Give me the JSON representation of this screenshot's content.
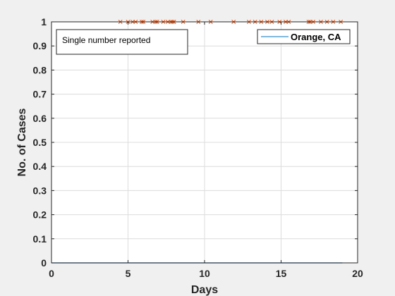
{
  "chart_data": {
    "type": "line",
    "title": "",
    "xlabel": "Days",
    "ylabel": "No. of Cases",
    "xlim": [
      0,
      20
    ],
    "ylim": [
      0,
      1
    ],
    "xticks": [
      "0",
      "5",
      "10",
      "15",
      "20"
    ],
    "yticks": [
      "0",
      "0.1",
      "0.2",
      "0.3",
      "0.4",
      "0.5",
      "0.6",
      "0.7",
      "0.8",
      "0.9",
      "1"
    ],
    "grid": true,
    "legend_position": "top-right",
    "annotation": "Single number reported",
    "series": [
      {
        "name": "Orange, CA",
        "style": "line",
        "color": "#0072bd",
        "x": [
          0,
          19
        ],
        "y": [
          0,
          0
        ]
      },
      {
        "name": "",
        "style": "x-markers",
        "color": "#d95319",
        "x": [
          4.5,
          5.0,
          5.3,
          5.5,
          5.9,
          6.0,
          6.6,
          6.8,
          6.9,
          7.3,
          7.6,
          7.8,
          7.9,
          8.0,
          8.6,
          9.6,
          10.4,
          11.9,
          12.9,
          13.3,
          13.7,
          14.1,
          14.4,
          14.9,
          15.3,
          15.5,
          16.8,
          16.9,
          17.1,
          17.6,
          18.0,
          18.4,
          18.9
        ],
        "y": [
          1,
          1,
          1,
          1,
          1,
          1,
          1,
          1,
          1,
          1,
          1,
          1,
          1,
          1,
          1,
          1,
          1,
          1,
          1,
          1,
          1,
          1,
          1,
          1,
          1,
          1,
          1,
          1,
          1,
          1,
          1,
          1,
          1
        ]
      }
    ]
  }
}
